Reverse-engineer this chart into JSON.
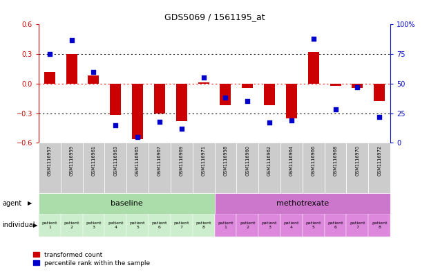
{
  "title": "GDS5069 / 1561195_at",
  "samples": [
    "GSM1116957",
    "GSM1116959",
    "GSM1116961",
    "GSM1116963",
    "GSM1116965",
    "GSM1116967",
    "GSM1116969",
    "GSM1116971",
    "GSM1116958",
    "GSM1116960",
    "GSM1116962",
    "GSM1116964",
    "GSM1116966",
    "GSM1116968",
    "GSM1116970",
    "GSM1116972"
  ],
  "bar_values": [
    0.12,
    0.3,
    0.08,
    -0.32,
    -0.56,
    -0.3,
    -0.38,
    0.01,
    -0.22,
    -0.04,
    -0.22,
    -0.35,
    0.32,
    -0.02,
    -0.04,
    -0.18
  ],
  "dot_values": [
    75,
    87,
    60,
    15,
    5,
    18,
    12,
    55,
    38,
    35,
    17,
    19,
    88,
    28,
    47,
    22
  ],
  "bar_color": "#cc0000",
  "dot_color": "#0000cc",
  "ylim": [
    -0.6,
    0.6
  ],
  "yticks_left": [
    -0.6,
    -0.3,
    0.0,
    0.3,
    0.6
  ],
  "yticks_right": [
    0,
    25,
    50,
    75,
    100
  ],
  "hlines": [
    -0.3,
    0.0,
    0.3
  ],
  "hline_colors": [
    "black",
    "red",
    "black"
  ],
  "hline_styles": [
    "dotted",
    "dotted",
    "dotted"
  ],
  "agent_labels": [
    "baseline",
    "methotrexate"
  ],
  "agent_colors": [
    "#aaddaa",
    "#cc77cc"
  ],
  "agent_ranges": [
    [
      0,
      8
    ],
    [
      8,
      16
    ]
  ],
  "individual_labels": [
    "patient\n1",
    "patient\n2",
    "patient\n3",
    "patient\n4",
    "patient\n5",
    "patient\n6",
    "patient\n7",
    "patient\n8",
    "patient\n1",
    "patient\n2",
    "patient\n3",
    "patient\n4",
    "patient\n5",
    "patient\n6",
    "patient\n7",
    "patient\n8"
  ],
  "individual_color_baseline": "#cceecc",
  "individual_color_methotrexate": "#dd88dd",
  "tick_label_color_left": "#cc0000",
  "tick_label_color_right": "#0000cc",
  "sample_box_color": "#cccccc",
  "bar_width": 0.5,
  "dot_size": 22,
  "legend_items": [
    {
      "label": "transformed count",
      "color": "#cc0000"
    },
    {
      "label": "percentile rank within the sample",
      "color": "#0000cc"
    }
  ]
}
